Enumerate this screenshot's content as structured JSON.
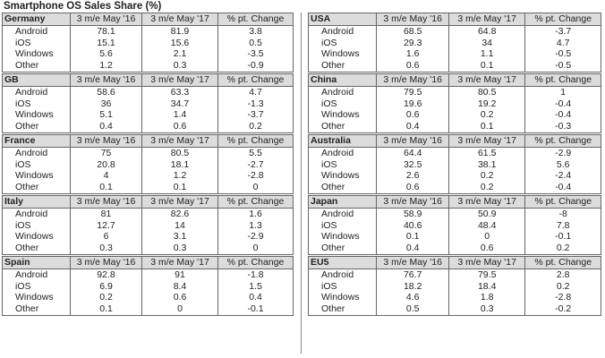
{
  "title": "Smartphone OS Sales Share (%)",
  "headers": [
    "3 m/e May '16",
    "3 m/e May '17",
    "% pt. Change"
  ],
  "left": [
    {
      "region": "Germany",
      "rows": [
        [
          "Android",
          "78.1",
          "81.9",
          "3.8"
        ],
        [
          "iOS",
          "15.1",
          "15.6",
          "0.5"
        ],
        [
          "Windows",
          "5.6",
          "2.1",
          "-3.5"
        ],
        [
          "Other",
          "1.2",
          "0.3",
          "-0.9"
        ]
      ]
    },
    {
      "region": "GB",
      "rows": [
        [
          "Android",
          "58.6",
          "63.3",
          "4.7"
        ],
        [
          "iOS",
          "36",
          "34.7",
          "-1.3"
        ],
        [
          "Windows",
          "5.1",
          "1.4",
          "-3.7"
        ],
        [
          "Other",
          "0.4",
          "0.6",
          "0.2"
        ]
      ]
    },
    {
      "region": "France",
      "rows": [
        [
          "Android",
          "75",
          "80.5",
          "5.5"
        ],
        [
          "iOS",
          "20.8",
          "18.1",
          "-2.7"
        ],
        [
          "Windows",
          "4",
          "1.2",
          "-2.8"
        ],
        [
          "Other",
          "0.1",
          "0.1",
          "0"
        ]
      ]
    },
    {
      "region": "Italy",
      "rows": [
        [
          "Android",
          "81",
          "82.6",
          "1.6"
        ],
        [
          "iOS",
          "12.7",
          "14",
          "1.3"
        ],
        [
          "Windows",
          "6",
          "3.1",
          "-2.9"
        ],
        [
          "Other",
          "0.3",
          "0.3",
          "0"
        ]
      ]
    },
    {
      "region": "Spain",
      "rows": [
        [
          "Android",
          "92.8",
          "91",
          "-1.8"
        ],
        [
          "iOS",
          "6.9",
          "8.4",
          "1.5"
        ],
        [
          "Windows",
          "0.2",
          "0.6",
          "0.4"
        ],
        [
          "Other",
          "0.1",
          "0",
          "-0.1"
        ]
      ]
    }
  ],
  "right": [
    {
      "region": "USA",
      "rows": [
        [
          "Android",
          "68.5",
          "64.8",
          "-3.7"
        ],
        [
          "iOS",
          "29.3",
          "34",
          "4.7"
        ],
        [
          "Windows",
          "1.6",
          "1.1",
          "-0.5"
        ],
        [
          "Other",
          "0.6",
          "0.1",
          "-0.5"
        ]
      ]
    },
    {
      "region": "China",
      "rows": [
        [
          "Android",
          "79.5",
          "80.5",
          "1"
        ],
        [
          "iOS",
          "19.6",
          "19.2",
          "-0.4"
        ],
        [
          "Windows",
          "0.6",
          "0.2",
          "-0.4"
        ],
        [
          "Other",
          "0.4",
          "0.1",
          "-0.3"
        ]
      ]
    },
    {
      "region": "Australia",
      "rows": [
        [
          "Android",
          "64.4",
          "61.5",
          "-2.9"
        ],
        [
          "iOS",
          "32.5",
          "38.1",
          "5.6"
        ],
        [
          "Windows",
          "2.6",
          "0.2",
          "-2.4"
        ],
        [
          "Other",
          "0.6",
          "0.2",
          "-0.4"
        ]
      ]
    },
    {
      "region": "Japan",
      "rows": [
        [
          "Android",
          "58.9",
          "50.9",
          "-8"
        ],
        [
          "iOS",
          "40.6",
          "48.4",
          "7.8"
        ],
        [
          "Windows",
          "0.1",
          "0",
          "-0.1"
        ],
        [
          "Other",
          "0.4",
          "0.6",
          "0.2"
        ]
      ]
    },
    {
      "region": "EU5",
      "rows": [
        [
          "Android",
          "76.7",
          "79.5",
          "2.8"
        ],
        [
          "iOS",
          "18.2",
          "18.4",
          "0.2"
        ],
        [
          "Windows",
          "4.6",
          "1.8",
          "-2.8"
        ],
        [
          "Other",
          "0.5",
          "0.3",
          "-0.2"
        ]
      ]
    }
  ]
}
